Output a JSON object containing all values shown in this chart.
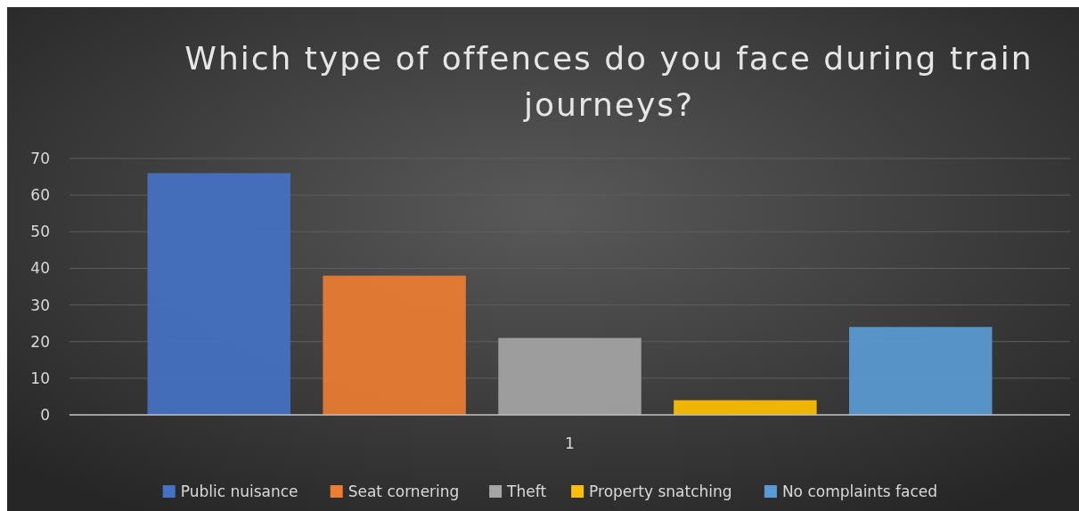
{
  "chart_data": {
    "type": "bar",
    "title": "Which type of offences do you face during train journeys?",
    "categories": [
      "1"
    ],
    "series": [
      {
        "name": "Public nuisance",
        "color": "#4472c4",
        "values": [
          66
        ]
      },
      {
        "name": "Seat cornering",
        "color": "#ed7d31",
        "values": [
          38
        ]
      },
      {
        "name": "Theft",
        "color": "#a5a5a5",
        "values": [
          21
        ]
      },
      {
        "name": "Property snatching",
        "color": "#ffc000",
        "values": [
          4
        ]
      },
      {
        "name": "No complaints faced",
        "color": "#5b9bd5",
        "values": [
          24
        ]
      }
    ],
    "ylim": [
      0,
      70
    ],
    "yticks": [
      0,
      10,
      20,
      30,
      40,
      50,
      60,
      70
    ],
    "grid": "y",
    "legend": "bottom"
  }
}
